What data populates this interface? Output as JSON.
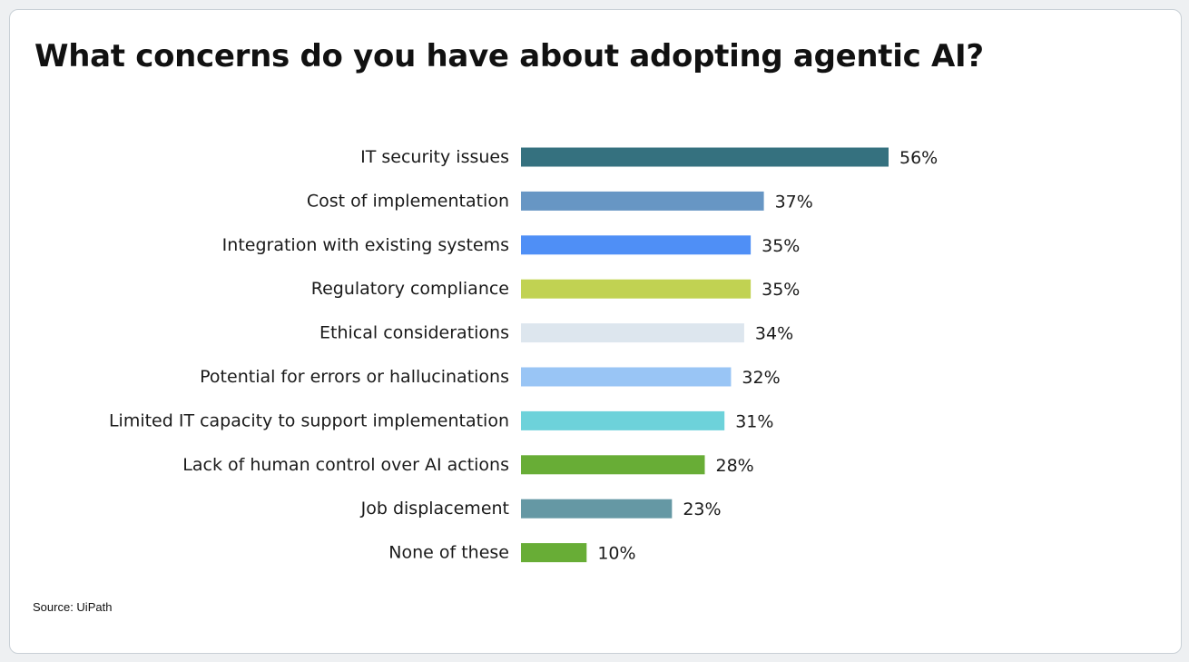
{
  "chart_data": {
    "type": "bar",
    "orientation": "horizontal",
    "title": "What concerns do you have about adopting agentic AI?",
    "source": "Source: UiPath",
    "categories": [
      "IT security issues",
      "Cost of implementation",
      "Integration with existing systems",
      "Regulatory compliance",
      "Ethical considerations",
      "Potential for errors or hallucinations",
      "Limited IT capacity to support implementation",
      "Lack of human control over AI actions",
      "Job displacement",
      "None of these"
    ],
    "values": [
      56,
      37,
      35,
      35,
      34,
      32,
      31,
      28,
      23,
      10
    ],
    "value_labels": [
      "56%",
      "37%",
      "35%",
      "35%",
      "34%",
      "32%",
      "31%",
      "28%",
      "23%",
      "10%"
    ],
    "colors": [
      "#35717f",
      "#6796c4",
      "#4f8ff6",
      "#c1d252",
      "#dde6ee",
      "#99c5f5",
      "#6dd2da",
      "#68ad36",
      "#6598a4",
      "#68ad36"
    ],
    "xlim": [
      0,
      56
    ],
    "grid": false,
    "legend": "none"
  }
}
